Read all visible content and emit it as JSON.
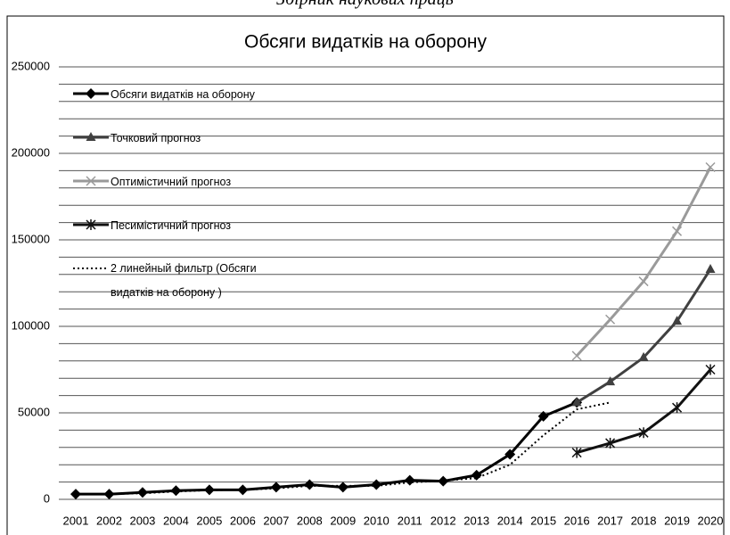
{
  "header": "Збірник наукових праць",
  "chart_data": {
    "type": "line",
    "title": "Обсяги видатків на оборону",
    "categories": [
      "2001",
      "2002",
      "2003",
      "2004",
      "2005",
      "2006",
      "2007",
      "2008",
      "2009",
      "2010",
      "2011",
      "2012",
      "2013",
      "2014",
      "2015",
      "2016",
      "2017",
      "2018",
      "2019",
      "2020"
    ],
    "ylim": [
      0,
      250000
    ],
    "yticks": [
      0,
      50000,
      100000,
      150000,
      200000,
      250000
    ],
    "ygrid": [
      10000,
      20000,
      30000,
      40000,
      60000,
      70000,
      80000,
      90000,
      110000,
      120000,
      130000,
      140000,
      160000,
      170000,
      180000,
      190000,
      210000,
      220000,
      230000,
      240000
    ],
    "grid": true,
    "legend": "upper left",
    "series": [
      {
        "name": "Обсяги видатків на оборону",
        "color": "#000000",
        "marker": "diamond",
        "style": "solid",
        "values": [
          3000,
          3000,
          4000,
          5000,
          5500,
          5500,
          7000,
          8500,
          7000,
          8500,
          11000,
          10500,
          14000,
          26000,
          48000,
          56000,
          null,
          null,
          null,
          null
        ]
      },
      {
        "name": "Точковий прогноз",
        "color": "#404040",
        "marker": "triangle",
        "style": "solid",
        "values": [
          null,
          null,
          null,
          null,
          null,
          null,
          null,
          null,
          null,
          null,
          null,
          null,
          null,
          null,
          null,
          56000,
          68000,
          82000,
          103000,
          133000
        ]
      },
      {
        "name": "Оптимістичний прогноз",
        "color": "#9a9a9a",
        "marker": "x",
        "style": "solid",
        "values": [
          null,
          null,
          null,
          null,
          null,
          null,
          null,
          null,
          null,
          null,
          null,
          null,
          null,
          null,
          null,
          83000,
          104000,
          126000,
          155000,
          192000
        ]
      },
      {
        "name": "Песимістичний прогноз",
        "color": "#111111",
        "marker": "star",
        "style": "solid",
        "values": [
          null,
          null,
          null,
          null,
          null,
          null,
          null,
          null,
          null,
          null,
          null,
          null,
          null,
          null,
          null,
          27000,
          32500,
          38500,
          53000,
          75000
        ]
      },
      {
        "name": "2 линейный фильтр (Обсяги видатків на оборону )",
        "color": "#000000",
        "marker": "none",
        "style": "dotted",
        "values": [
          null,
          3000,
          3500,
          4500,
          5300,
          5500,
          6300,
          7800,
          7800,
          7800,
          9800,
          10800,
          12300,
          20000,
          37000,
          52000,
          56000,
          null,
          null,
          null
        ]
      }
    ]
  }
}
